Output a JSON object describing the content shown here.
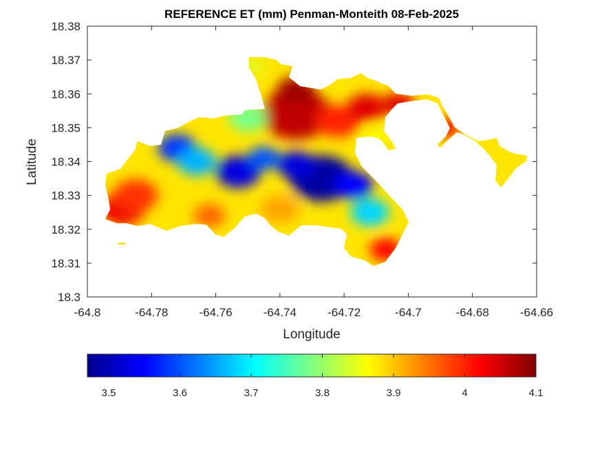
{
  "chart_data": {
    "type": "heatmap",
    "title": "REFERENCE ET (mm) Penman-Monteith 08-Feb-2025",
    "xlabel": "Longitude",
    "ylabel": "Latitude",
    "xlim": [
      -64.8,
      -64.66
    ],
    "ylim": [
      18.3,
      18.38
    ],
    "x_ticks": [
      "-64.8",
      "-64.78",
      "-64.76",
      "-64.74",
      "-64.72",
      "-64.7",
      "-64.68",
      "-64.66"
    ],
    "y_ticks": [
      "18.3",
      "18.31",
      "18.32",
      "18.33",
      "18.34",
      "18.35",
      "18.36",
      "18.37",
      "18.38"
    ],
    "colormap": "jet",
    "colorbar": {
      "location": "bottom",
      "range": [
        3.47,
        4.1
      ],
      "ticks": [
        "3.5",
        "3.6",
        "3.7",
        "3.8",
        "3.9",
        "4",
        "4.1"
      ]
    },
    "blobs": [
      {
        "lon": -64.735,
        "lat": 18.354,
        "r": 0.011,
        "value": 4.06
      },
      {
        "lon": -64.735,
        "lat": 18.361,
        "r": 0.006,
        "value": 4.08
      },
      {
        "lon": -64.789,
        "lat": 18.326,
        "r": 0.007,
        "value": 4.03
      },
      {
        "lon": -64.785,
        "lat": 18.33,
        "r": 0.007,
        "value": 3.99
      },
      {
        "lon": -64.722,
        "lat": 18.352,
        "r": 0.007,
        "value": 4.0
      },
      {
        "lon": -64.713,
        "lat": 18.356,
        "r": 0.006,
        "value": 4.04
      },
      {
        "lon": -64.727,
        "lat": 18.335,
        "r": 0.01,
        "value": 3.49
      },
      {
        "lon": -64.735,
        "lat": 18.339,
        "r": 0.006,
        "value": 3.53
      },
      {
        "lon": -64.717,
        "lat": 18.333,
        "r": 0.006,
        "value": 3.55
      },
      {
        "lon": -64.753,
        "lat": 18.337,
        "r": 0.007,
        "value": 3.53
      },
      {
        "lon": -64.772,
        "lat": 18.344,
        "r": 0.006,
        "value": 3.58
      },
      {
        "lon": -64.766,
        "lat": 18.34,
        "r": 0.006,
        "value": 3.66
      },
      {
        "lon": -64.745,
        "lat": 18.341,
        "r": 0.005,
        "value": 3.6
      },
      {
        "lon": -64.712,
        "lat": 18.325,
        "r": 0.006,
        "value": 3.68
      },
      {
        "lon": -64.74,
        "lat": 18.326,
        "r": 0.006,
        "value": 3.92
      },
      {
        "lon": -64.762,
        "lat": 18.324,
        "r": 0.005,
        "value": 3.96
      },
      {
        "lon": -64.707,
        "lat": 18.314,
        "r": 0.005,
        "value": 4.02
      },
      {
        "lon": -64.703,
        "lat": 18.357,
        "r": 0.005,
        "value": 4.04
      },
      {
        "lon": -64.688,
        "lat": 18.35,
        "r": 0.004,
        "value": 4.02
      },
      {
        "lon": -64.671,
        "lat": 18.34,
        "r": 0.004,
        "value": 3.88
      },
      {
        "lon": -64.75,
        "lat": 18.353,
        "r": 0.006,
        "value": 3.78
      },
      {
        "lon": -64.748,
        "lat": 18.368,
        "r": 0.003,
        "value": 3.84
      },
      {
        "lon": -64.71,
        "lat": 18.347,
        "r": 0.004,
        "value": 3.86
      }
    ],
    "base_value": 3.88
  }
}
